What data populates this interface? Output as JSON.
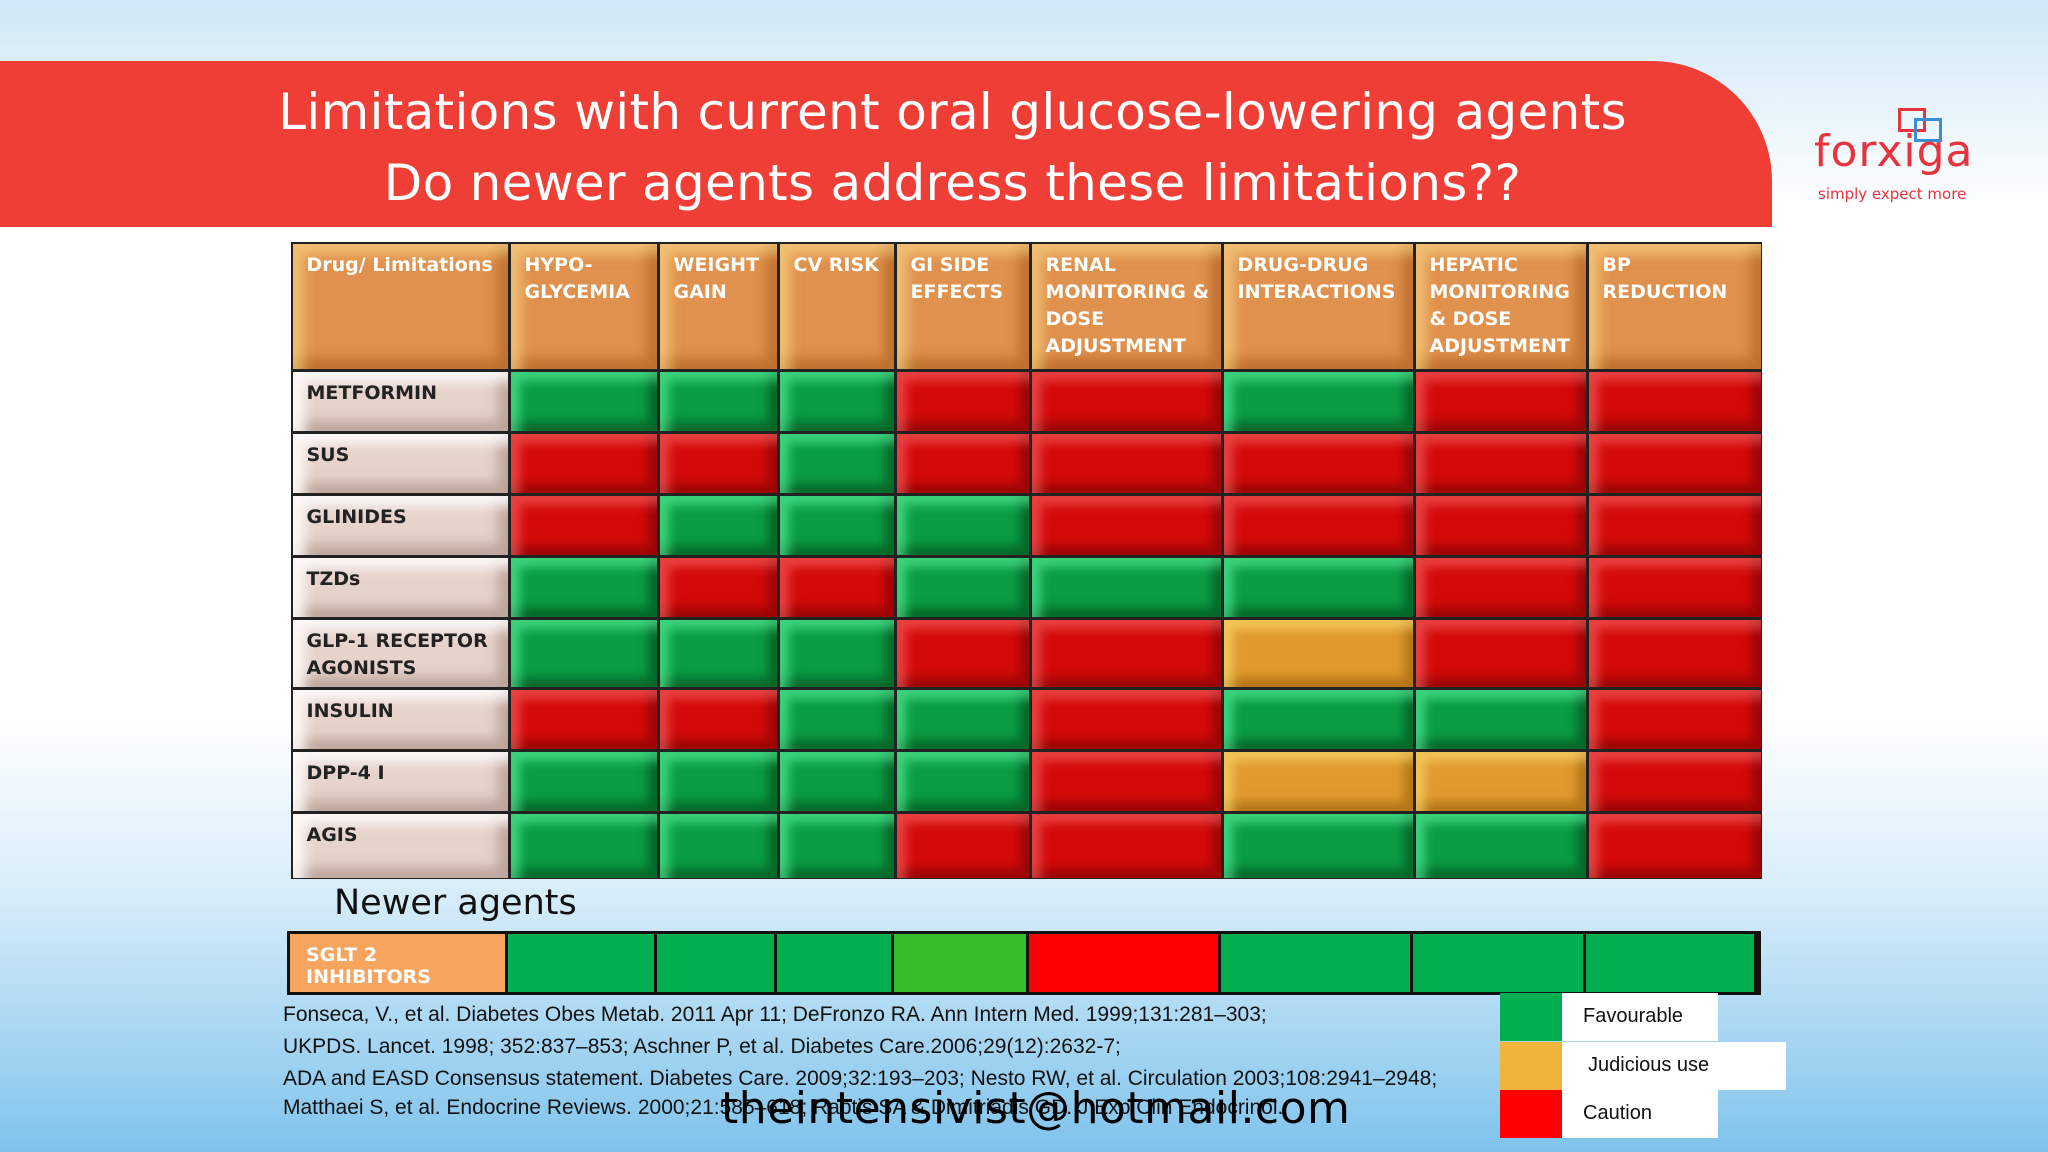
{
  "slide": {
    "title_line1": "Limitations with current oral glucose-lowering agents",
    "title_line2": "Do newer agents address these limitations??"
  },
  "logo": {
    "brand": "forxiga",
    "tagline": "simply expect more",
    "colors": {
      "brand": "#e8323d",
      "accent": "#3b8fd0"
    }
  },
  "table": {
    "headers": [
      "Drug/ Limitations",
      "HYPO- GLYCEMIA",
      "WEIGHT GAIN",
      "CV RISK",
      "GI SIDE EFFECTS",
      "RENAL MONITORING & DOSE ADJUSTMENT",
      "DRUG-DRUG INTERACTIONS",
      "HEPATIC MONITORING & DOSE ADJUSTMENT",
      "BP REDUCTION"
    ],
    "rows": [
      {
        "drug": "METFORMIN",
        "ratings": [
          "g",
          "g",
          "g",
          "r",
          "r",
          "g",
          "r",
          "r"
        ]
      },
      {
        "drug": "SUS",
        "ratings": [
          "r",
          "r",
          "g",
          "r",
          "r",
          "r",
          "r",
          "r"
        ]
      },
      {
        "drug": "GLINIDES",
        "ratings": [
          "r",
          "g",
          "g",
          "g",
          "r",
          "r",
          "r",
          "r"
        ]
      },
      {
        "drug": "TZDs",
        "ratings": [
          "g",
          "r",
          "r",
          "g",
          "g",
          "g",
          "r",
          "r"
        ]
      },
      {
        "drug": "GLP-1 RECEPTOR AGONISTS",
        "ratings": [
          "g",
          "g",
          "g",
          "r",
          "r",
          "y",
          "r",
          "r"
        ]
      },
      {
        "drug": "INSULIN",
        "ratings": [
          "r",
          "r",
          "g",
          "g",
          "r",
          "g",
          "g",
          "r"
        ]
      },
      {
        "drug": "DPP-4 I",
        "ratings": [
          "g",
          "g",
          "g",
          "g",
          "r",
          "y",
          "y",
          "r"
        ]
      },
      {
        "drug": "AGIS",
        "ratings": [
          "g",
          "g",
          "g",
          "r",
          "r",
          "g",
          "g",
          "r"
        ]
      }
    ]
  },
  "newer": {
    "heading": "Newer agents",
    "row": {
      "drug": "SGLT 2 INHIBITORS",
      "ratings": [
        "fg",
        "fg",
        "fg",
        "fl",
        "fr",
        "fg",
        "fg",
        "fg"
      ]
    }
  },
  "legend": [
    {
      "label": "Favourable",
      "color": "#00b050"
    },
    {
      "label": "Judicious use",
      "color": "#f0b43a"
    },
    {
      "label": "Caution",
      "color": "#ff0000"
    }
  ],
  "references": [
    "Fonseca, V., et al. Diabetes Obes Metab. 2011 Apr 11; DeFronzo RA. Ann Intern Med. 1999;131:281–303;",
    "UKPDS. Lancet. 1998; 352:837–853; Aschner P, et al. Diabetes Care.2006;29(12):2632-7;",
    "ADA and EASD Consensus statement. Diabetes Care. 2009;32:193–203; Nesto RW, et al. Circulation 2003;108:2941–2948;",
    "Matthaei S, et al. Endocrine Reviews. 2000;21:585–618; Raptis SA & Dimitriadis GD. J Exp Clin Endocrinol."
  ],
  "email": "theintensivist@hotmail.com"
}
